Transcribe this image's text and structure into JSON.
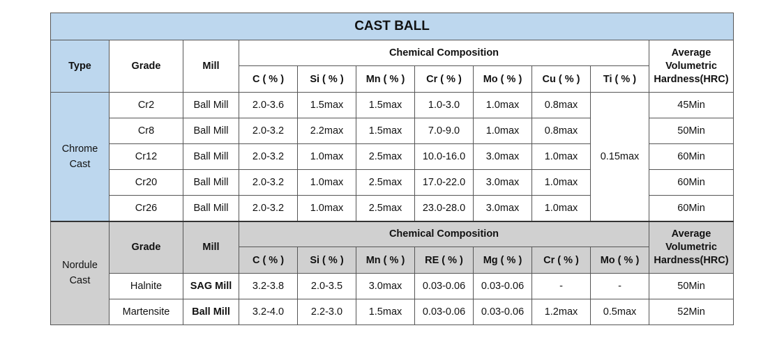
{
  "title": "CAST BALL",
  "chrome": {
    "headers": {
      "type": "Type",
      "grade": "Grade",
      "mill": "Mill",
      "chemical": "Chemical Composition",
      "hardness_1": "Average",
      "hardness_2": "Volumetric",
      "hardness_3": "Hardness(HRC)",
      "elements": [
        "C ( % )",
        "Si ( % )",
        "Mn ( % )",
        "Cr ( % )",
        "Mo ( % )",
        "Cu ( % )",
        "Ti ( % )"
      ]
    },
    "type_line1": "Chrome",
    "type_line2": "Cast",
    "ti_shared": "0.15max",
    "rows": [
      {
        "grade": "Cr2",
        "mill": "Ball Mill",
        "c": "2.0-3.6",
        "si": "1.5max",
        "mn": "1.5max",
        "cr": "1.0-3.0",
        "mo": "1.0max",
        "cu": "0.8max",
        "hardness": "45Min"
      },
      {
        "grade": "Cr8",
        "mill": "Ball Mill",
        "c": "2.0-3.2",
        "si": "2.2max",
        "mn": "1.5max",
        "cr": "7.0-9.0",
        "mo": "1.0max",
        "cu": "0.8max",
        "hardness": "50Min"
      },
      {
        "grade": "Cr12",
        "mill": "Ball Mill",
        "c": "2.0-3.2",
        "si": "1.0max",
        "mn": "2.5max",
        "cr": "10.0-16.0",
        "mo": "3.0max",
        "cu": "1.0max",
        "hardness": "60Min"
      },
      {
        "grade": "Cr20",
        "mill": "Ball Mill",
        "c": "2.0-3.2",
        "si": "1.0max",
        "mn": "2.5max",
        "cr": "17.0-22.0",
        "mo": "3.0max",
        "cu": "1.0max",
        "hardness": "60Min"
      },
      {
        "grade": "Cr26",
        "mill": "Ball Mill",
        "c": "2.0-3.2",
        "si": "1.0max",
        "mn": "2.5max",
        "cr": "23.0-28.0",
        "mo": "3.0max",
        "cu": "1.0max",
        "hardness": "60Min"
      }
    ]
  },
  "nodular": {
    "headers": {
      "grade": "Grade",
      "mill": "Mill",
      "chemical": "Chemical Composition",
      "hardness_1": "Average",
      "hardness_2": "Volumetric",
      "hardness_3": "Hardness(HRC)",
      "elements": [
        "C ( % )",
        "Si ( % )",
        "Mn ( % )",
        "RE ( % )",
        "Mg ( % )",
        "Cr ( % )",
        "Mo ( % )"
      ]
    },
    "type_line1": "Nordule",
    "type_line2": "Cast",
    "rows": [
      {
        "grade": "Halnite",
        "mill": "SAG Mill",
        "c": "3.2-3.8",
        "si": "2.0-3.5",
        "mn": "3.0max",
        "re": "0.03-0.06",
        "mg": "0.03-0.06",
        "cr": "-",
        "mo": "-",
        "hardness": "50Min"
      },
      {
        "grade": "Martensite",
        "mill": "Ball Mill",
        "c": "3.2-4.0",
        "si": "2.2-3.0",
        "mn": "1.5max",
        "re": "0.03-0.06",
        "mg": "0.03-0.06",
        "cr": "1.2max",
        "mo": "0.5max",
        "hardness": "52Min"
      }
    ]
  },
  "colors": {
    "title_bg": "#bdd7ee",
    "chrome_type_bg": "#bdd7ee",
    "nodular_header_bg": "#d0d0d0"
  }
}
